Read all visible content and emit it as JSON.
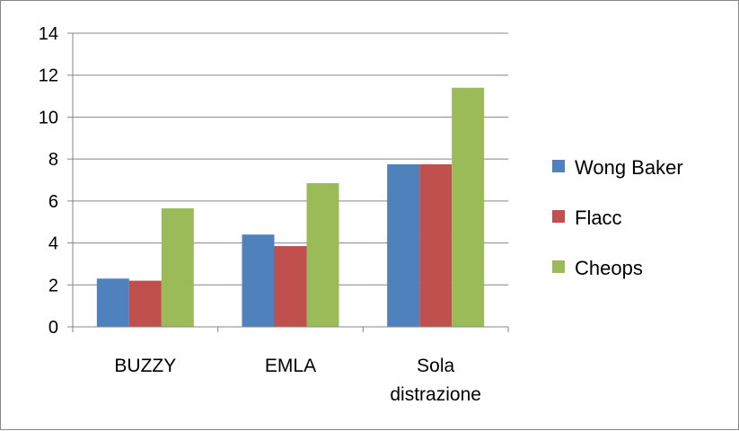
{
  "chart_data": {
    "type": "bar",
    "title": "",
    "xlabel": "",
    "ylabel": "",
    "categories": [
      [
        "BUZZY"
      ],
      [
        "EMLA"
      ],
      [
        "Sola",
        "distrazione"
      ]
    ],
    "series": [
      {
        "name": "Wong Baker",
        "color": "#4F81BD",
        "values": [
          2.3,
          4.4,
          7.75
        ]
      },
      {
        "name": "Flacc",
        "color": "#C0504D",
        "values": [
          2.2,
          3.85,
          7.75
        ]
      },
      {
        "name": "Cheops",
        "color": "#9BBB59",
        "values": [
          5.65,
          6.85,
          11.4
        ]
      }
    ],
    "ylim": [
      0,
      14
    ],
    "yticks": [
      "0",
      "2",
      "4",
      "6",
      "8",
      "10",
      "12",
      "14"
    ],
    "grid": true,
    "legend_position": "right"
  }
}
